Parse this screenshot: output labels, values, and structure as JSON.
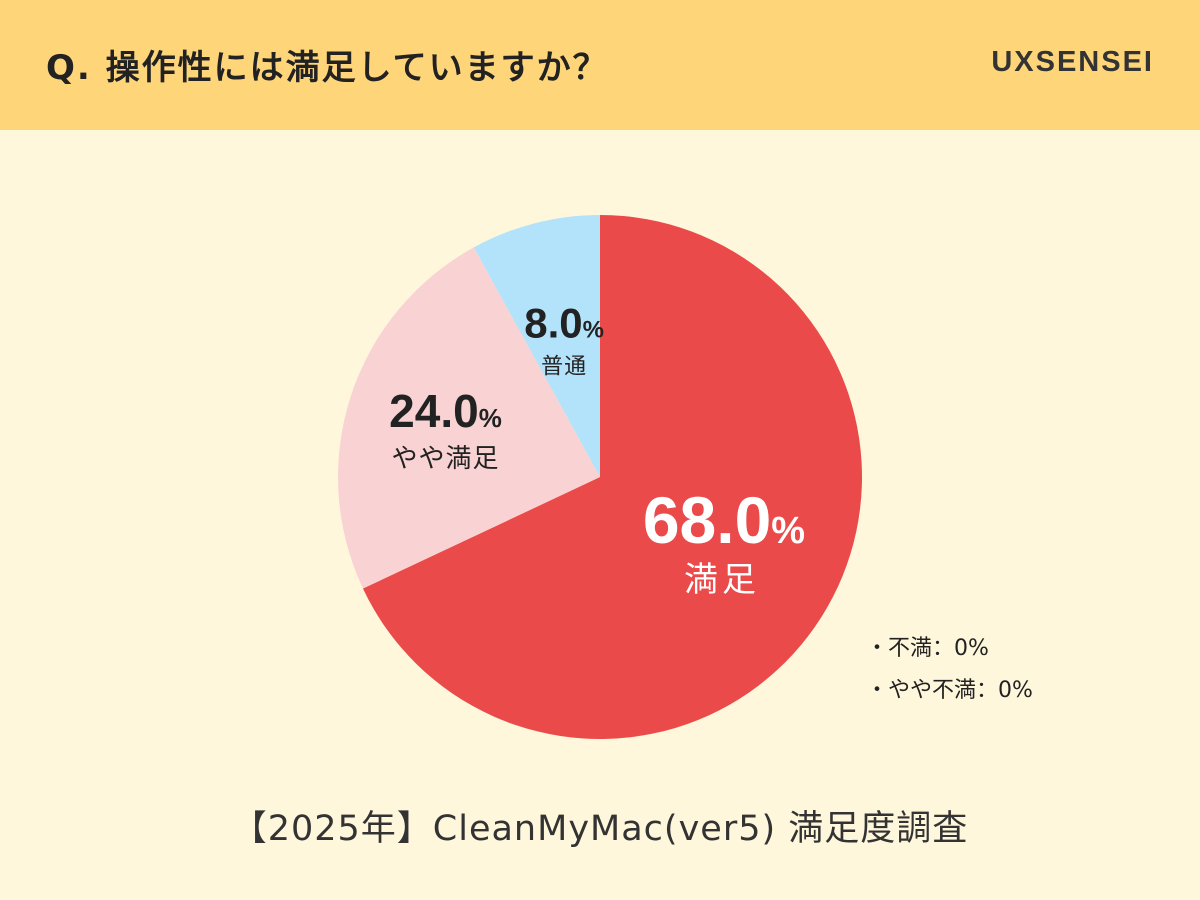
{
  "header": {
    "question": "Q. 操作性には満足していますか？",
    "brand": "UXSENSEI"
  },
  "colors": {
    "header_bg": "#FFD57A",
    "page_bg": "#FFF7DC",
    "satisfied": "#EB4A4A",
    "somewhat_satisfied": "#F9D3D3",
    "neutral": "#B3E3FB"
  },
  "chart_data": {
    "type": "pie",
    "slices": [
      {
        "label": "満足",
        "value": 68.0,
        "value_label": "68.0",
        "unit": "%",
        "color": "#EB4A4A"
      },
      {
        "label": "やや満足",
        "value": 24.0,
        "value_label": "24.0",
        "unit": "%",
        "color": "#F9D3D3"
      },
      {
        "label": "普通",
        "value": 8.0,
        "value_label": "8.0",
        "unit": "%",
        "color": "#B3E3FB"
      }
    ],
    "start": "12 o'clock",
    "direction": "clockwise",
    "notes": [
      "・不満：0%",
      "・やや不満：0%"
    ],
    "caption": "【2025年】CleanMyMac(ver5) 満足度調査"
  }
}
